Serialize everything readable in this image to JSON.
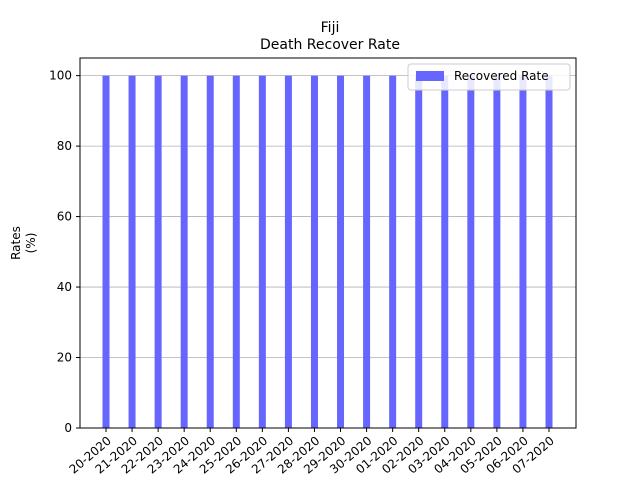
{
  "chart_data": {
    "type": "bar",
    "title": "Fiji",
    "subtitle": "Death Recover Rate",
    "xlabel": "",
    "ylabel": "Rates",
    "ylabel_unit": "(%)",
    "ylim": [
      0,
      105
    ],
    "yticks": [
      0,
      20,
      40,
      60,
      80,
      100
    ],
    "grid": "y",
    "legend": "top-right",
    "categories": [
      "20-2020",
      "21-2020",
      "22-2020",
      "23-2020",
      "24-2020",
      "25-2020",
      "26-2020",
      "27-2020",
      "28-2020",
      "29-2020",
      "30-2020",
      "01-2020",
      "02-2020",
      "03-2020",
      "04-2020",
      "05-2020",
      "06-2020",
      "07-2020"
    ],
    "series": [
      {
        "name": "Recovered Rate",
        "color": "#6666ff",
        "values": [
          100,
          100,
          100,
          100,
          100,
          100,
          100,
          100,
          100,
          100,
          100,
          100,
          100,
          100,
          100,
          100,
          100,
          100
        ]
      }
    ]
  }
}
